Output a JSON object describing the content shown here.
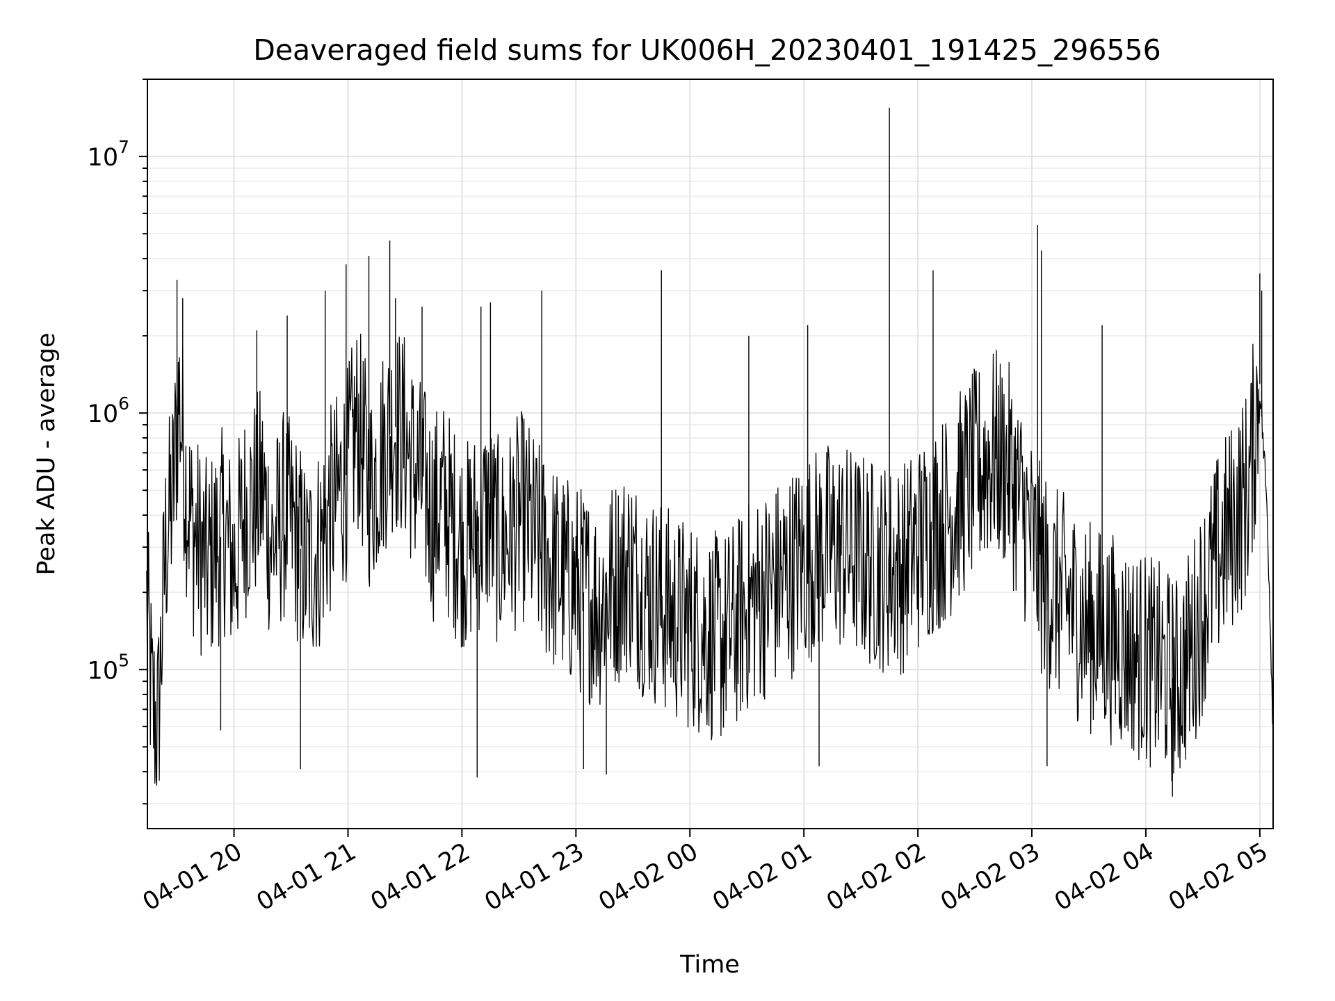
{
  "chart_data": {
    "type": "line",
    "title": "Deaveraged field sums for UK006H_20230401_191425_296556",
    "xlabel": "Time",
    "ylabel": "Peak ADU - average",
    "yscale": "log",
    "ylim": [
      24000,
      20000000
    ],
    "xlim": [
      "2023-04-01 19:14:25",
      "2023-04-02 05:07:00"
    ],
    "grid": true,
    "x_ticks": [
      {
        "value": "2023-04-01 20:00",
        "label": "04-01 20"
      },
      {
        "value": "2023-04-01 21:00",
        "label": "04-01 21"
      },
      {
        "value": "2023-04-01 22:00",
        "label": "04-01 22"
      },
      {
        "value": "2023-04-01 23:00",
        "label": "04-01 23"
      },
      {
        "value": "2023-04-02 00:00",
        "label": "04-02 00"
      },
      {
        "value": "2023-04-02 01:00",
        "label": "04-02 01"
      },
      {
        "value": "2023-04-02 02:00",
        "label": "04-02 02"
      },
      {
        "value": "2023-04-02 03:00",
        "label": "04-02 03"
      },
      {
        "value": "2023-04-02 04:00",
        "label": "04-02 04"
      },
      {
        "value": "2023-04-02 05:00",
        "label": "04-02 05"
      }
    ],
    "y_ticks": [
      {
        "value": 100000,
        "base": "10",
        "exp": "5"
      },
      {
        "value": 1000000,
        "base": "10",
        "exp": "6"
      },
      {
        "value": 10000000,
        "base": "10",
        "exp": "7"
      }
    ],
    "series": [
      {
        "color": "#000000",
        "x": [
          "2023-04-01 19:14",
          "2023-04-01 19:17",
          "2023-04-01 19:20",
          "2023-04-01 19:24",
          "2023-04-01 19:28",
          "2023-04-01 19:31",
          "2023-04-01 19:35",
          "2023-04-01 19:38",
          "2023-04-01 19:42",
          "2023-04-01 19:46",
          "2023-04-01 19:50",
          "2023-04-01 19:55",
          "2023-04-01 20:00",
          "2023-04-01 20:05",
          "2023-04-01 20:10",
          "2023-04-01 20:15",
          "2023-04-01 20:20",
          "2023-04-01 20:26",
          "2023-04-01 20:32",
          "2023-04-01 20:38",
          "2023-04-01 20:45",
          "2023-04-01 20:50",
          "2023-04-01 20:56",
          "2023-04-01 21:00",
          "2023-04-01 21:05",
          "2023-04-01 21:12",
          "2023-04-01 21:18",
          "2023-04-01 21:24",
          "2023-04-01 21:30",
          "2023-04-01 21:35",
          "2023-04-01 21:40",
          "2023-04-01 21:45",
          "2023-04-01 21:50",
          "2023-04-01 21:56",
          "2023-04-01 22:02",
          "2023-04-01 22:08",
          "2023-04-01 22:14",
          "2023-04-01 22:20",
          "2023-04-01 22:26",
          "2023-04-01 22:32",
          "2023-04-01 22:40",
          "2023-04-01 22:48",
          "2023-04-01 22:56",
          "2023-04-01 23:04",
          "2023-04-01 23:12",
          "2023-04-01 23:20",
          "2023-04-01 23:28",
          "2023-04-01 23:36",
          "2023-04-01 23:44",
          "2023-04-01 23:52",
          "2023-04-02 00:00",
          "2023-04-02 00:08",
          "2023-04-02 00:16",
          "2023-04-02 00:24",
          "2023-04-02 00:32",
          "2023-04-02 00:40",
          "2023-04-02 00:48",
          "2023-04-02 00:56",
          "2023-04-02 01:04",
          "2023-04-02 01:12",
          "2023-04-02 01:20",
          "2023-04-02 01:28",
          "2023-04-02 01:36",
          "2023-04-02 01:44",
          "2023-04-02 01:48",
          "2023-04-02 01:52",
          "2023-04-02 02:00",
          "2023-04-02 02:08",
          "2023-04-02 02:16",
          "2023-04-02 02:24",
          "2023-04-02 02:32",
          "2023-04-02 02:40",
          "2023-04-02 02:48",
          "2023-04-02 02:56",
          "2023-04-02 03:04",
          "2023-04-02 03:12",
          "2023-04-02 03:20",
          "2023-04-02 03:28",
          "2023-04-02 03:36",
          "2023-04-02 03:44",
          "2023-04-02 03:52",
          "2023-04-02 04:00",
          "2023-04-02 04:08",
          "2023-04-02 04:16",
          "2023-04-02 04:24",
          "2023-04-02 04:32",
          "2023-04-02 04:40",
          "2023-04-02 04:48",
          "2023-04-02 04:54",
          "2023-04-02 05:00",
          "2023-04-02 05:04",
          "2023-04-02 05:07"
        ],
        "y": [
          180000,
          70000,
          60000,
          300000,
          500000,
          1200000,
          500000,
          350000,
          300000,
          250000,
          300000,
          350000,
          250000,
          400000,
          450000,
          500000,
          300000,
          400000,
          350000,
          250000,
          300000,
          400000,
          500000,
          600000,
          900000,
          500000,
          700000,
          900000,
          800000,
          600000,
          500000,
          400000,
          450000,
          350000,
          300000,
          350000,
          400000,
          300000,
          350000,
          400000,
          300000,
          250000,
          220000,
          200000,
          180000,
          220000,
          250000,
          200000,
          180000,
          160000,
          150000,
          140000,
          130000,
          150000,
          180000,
          200000,
          220000,
          250000,
          280000,
          300000,
          300000,
          280000,
          260000,
          250000,
          250000,
          250000,
          300000,
          350000,
          400000,
          500000,
          600000,
          700000,
          600000,
          400000,
          250000,
          200000,
          180000,
          150000,
          140000,
          130000,
          120000,
          110000,
          100000,
          90000,
          120000,
          200000,
          300000,
          400000,
          500000,
          1300000,
          400000,
          60000
        ]
      }
    ],
    "spikes": [
      {
        "x": "2023-04-01 19:30",
        "y": 3300000
      },
      {
        "x": "2023-04-01 19:33",
        "y": 2800000
      },
      {
        "x": "2023-04-01 20:12",
        "y": 2100000
      },
      {
        "x": "2023-04-01 20:28",
        "y": 2400000
      },
      {
        "x": "2023-04-01 20:48",
        "y": 3000000
      },
      {
        "x": "2023-04-01 20:59",
        "y": 3800000
      },
      {
        "x": "2023-04-01 21:11",
        "y": 4100000
      },
      {
        "x": "2023-04-01 21:22",
        "y": 4700000
      },
      {
        "x": "2023-04-01 21:25",
        "y": 2800000
      },
      {
        "x": "2023-04-01 21:39",
        "y": 2600000
      },
      {
        "x": "2023-04-01 22:10",
        "y": 2600000
      },
      {
        "x": "2023-04-01 22:15",
        "y": 2700000
      },
      {
        "x": "2023-04-01 22:42",
        "y": 3000000
      },
      {
        "x": "2023-04-01 23:45",
        "y": 3600000
      },
      {
        "x": "2023-04-02 00:31",
        "y": 2000000
      },
      {
        "x": "2023-04-02 01:02",
        "y": 2200000
      },
      {
        "x": "2023-04-02 01:45",
        "y": 15500000
      },
      {
        "x": "2023-04-02 02:08",
        "y": 3600000
      },
      {
        "x": "2023-04-02 03:03",
        "y": 5400000
      },
      {
        "x": "2023-04-02 03:05",
        "y": 4300000
      },
      {
        "x": "2023-04-02 03:37",
        "y": 2200000
      },
      {
        "x": "2023-04-02 05:00",
        "y": 3500000
      },
      {
        "x": "2023-04-02 05:01",
        "y": 3000000
      }
    ],
    "dips": [
      {
        "x": "2023-04-01 19:53",
        "y": 58000
      },
      {
        "x": "2023-04-01 20:35",
        "y": 41000
      },
      {
        "x": "2023-04-01 22:08",
        "y": 38000
      },
      {
        "x": "2023-04-01 23:04",
        "y": 41000
      },
      {
        "x": "2023-04-01 23:16",
        "y": 39000
      },
      {
        "x": "2023-04-02 01:08",
        "y": 42000
      },
      {
        "x": "2023-04-02 03:08",
        "y": 42000
      },
      {
        "x": "2023-04-02 04:14",
        "y": 32000
      }
    ]
  }
}
